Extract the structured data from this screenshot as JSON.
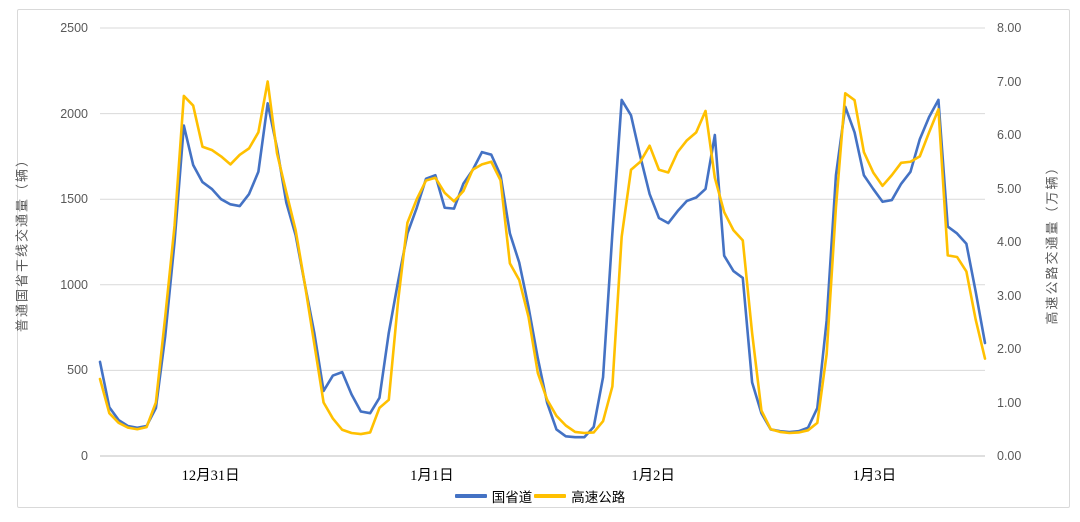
{
  "chart_data": {
    "type": "line",
    "title": "",
    "categories": [
      "12月31日",
      "1月1日",
      "1月2日",
      "1月3日"
    ],
    "points_per_category": 24,
    "x_unit": "hour of day (24 hourly points per labeled day)",
    "grid": true,
    "legend_position": "bottom",
    "left_axis": {
      "title": "普通国省干线交通量（辆）",
      "lim": [
        0,
        2500
      ],
      "ticks": [
        "0",
        "500",
        "1000",
        "1500",
        "2000",
        "2500"
      ]
    },
    "right_axis": {
      "title": "高速公路交通量（万辆）",
      "lim": [
        0,
        8
      ],
      "ticks": [
        "0.00",
        "1.00",
        "2.00",
        "3.00",
        "4.00",
        "5.00",
        "6.00",
        "7.00",
        "8.00"
      ]
    },
    "series": [
      {
        "name": "国省道",
        "axis": "left",
        "unit": "辆",
        "color": "#4472C4",
        "values": [
          550,
          285,
          210,
          175,
          165,
          175,
          280,
          700,
          1250,
          1930,
          1700,
          1600,
          1560,
          1500,
          1470,
          1460,
          1530,
          1660,
          2060,
          1800,
          1480,
          1290,
          1000,
          720,
          380,
          470,
          490,
          360,
          260,
          250,
          340,
          720,
          1020,
          1300,
          1450,
          1620,
          1640,
          1450,
          1445,
          1590,
          1670,
          1775,
          1760,
          1640,
          1300,
          1130,
          870,
          570,
          310,
          155,
          115,
          110,
          110,
          170,
          460,
          1300,
          2080,
          1990,
          1750,
          1530,
          1390,
          1360,
          1430,
          1490,
          1510,
          1560,
          1875,
          1170,
          1080,
          1040,
          430,
          250,
          155,
          145,
          140,
          145,
          165,
          280,
          790,
          1640,
          2040,
          1890,
          1640,
          1560,
          1485,
          1495,
          1590,
          1660,
          1850,
          1980,
          2080,
          1340,
          1300,
          1240,
          960,
          660
        ]
      },
      {
        "name": "高速公路",
        "axis": "right",
        "unit": "万辆",
        "color": "#FFC000",
        "values": [
          1.44,
          0.8,
          0.62,
          0.53,
          0.5,
          0.54,
          1.0,
          2.6,
          4.3,
          6.73,
          6.55,
          5.78,
          5.72,
          5.6,
          5.45,
          5.63,
          5.75,
          6.05,
          7.0,
          5.66,
          4.93,
          4.22,
          3.2,
          2.1,
          1.0,
          0.7,
          0.49,
          0.43,
          0.41,
          0.44,
          0.9,
          1.05,
          2.9,
          4.36,
          4.8,
          5.15,
          5.2,
          4.92,
          4.76,
          4.95,
          5.35,
          5.45,
          5.5,
          5.15,
          3.6,
          3.29,
          2.6,
          1.55,
          1.05,
          0.75,
          0.57,
          0.45,
          0.43,
          0.44,
          0.65,
          1.3,
          4.1,
          5.35,
          5.5,
          5.8,
          5.35,
          5.3,
          5.68,
          5.9,
          6.05,
          6.45,
          5.2,
          4.56,
          4.22,
          4.03,
          2.3,
          0.85,
          0.5,
          0.45,
          0.43,
          0.44,
          0.48,
          0.62,
          1.9,
          4.65,
          6.78,
          6.65,
          5.68,
          5.3,
          5.05,
          5.25,
          5.48,
          5.5,
          5.6,
          6.05,
          6.48,
          3.75,
          3.72,
          3.45,
          2.55,
          1.82
        ]
      }
    ],
    "colors": {
      "grid": "#D9D9D9",
      "axis_line": "#BFBFBF",
      "tick_text": "#595959"
    }
  }
}
